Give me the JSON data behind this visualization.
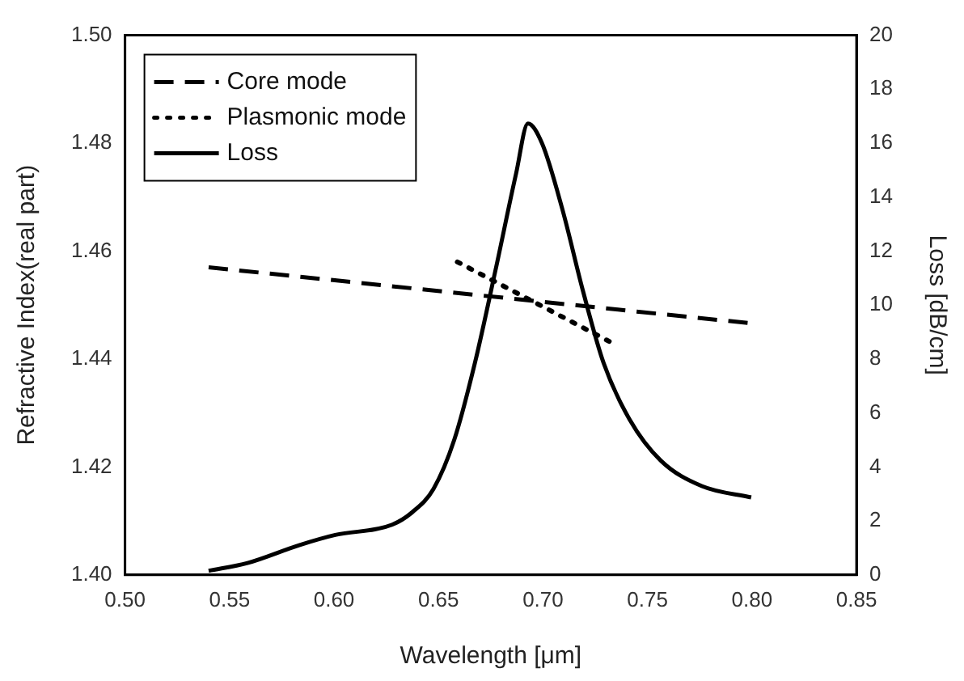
{
  "chart_data": {
    "type": "line",
    "xlabel": "Wavelength [μm]",
    "ylabel": "Refractive Index(real part)",
    "y2label": "Loss [dB/cm]",
    "xlim": [
      0.5,
      0.85
    ],
    "xticks": [
      {
        "value": 0.5,
        "label": "0.50"
      },
      {
        "value": 0.55,
        "label": "0.55"
      },
      {
        "value": 0.6,
        "label": "0.60"
      },
      {
        "value": 0.65,
        "label": "0.65"
      },
      {
        "value": 0.7,
        "label": "0.70"
      },
      {
        "value": 0.75,
        "label": "0.75"
      },
      {
        "value": 0.8,
        "label": "0.80"
      },
      {
        "value": 0.85,
        "label": "0.85"
      }
    ],
    "ylim": [
      1.4,
      1.5
    ],
    "yticks": [
      {
        "value": 1.4,
        "label": "1.40"
      },
      {
        "value": 1.42,
        "label": "1.42"
      },
      {
        "value": 1.44,
        "label": "1.44"
      },
      {
        "value": 1.46,
        "label": "1.46"
      },
      {
        "value": 1.48,
        "label": "1.48"
      },
      {
        "value": 1.5,
        "label": "1.50"
      }
    ],
    "y2lim": [
      0,
      20
    ],
    "y2ticks": [
      0,
      2,
      4,
      6,
      8,
      10,
      12,
      14,
      16,
      18,
      20
    ],
    "grid": false,
    "legend": "top left",
    "marker": "none",
    "series": [
      {
        "name": "Core mode",
        "color": "#000000",
        "line_style": "dashed",
        "x": [
          0.54,
          0.8
        ],
        "values": [
          1.457,
          1.4466
        ]
      },
      {
        "name": "Plasmonic mode",
        "color": "#000000",
        "line_style": "dotted",
        "x": [
          0.659,
          0.733
        ],
        "values": [
          1.458,
          1.443
        ]
      },
      {
        "name": "Loss",
        "color": "#000000",
        "line_style": "solid",
        "axis": "y2",
        "x": [
          0.54,
          0.5586,
          0.5833,
          0.6006,
          0.6278,
          0.6377,
          0.6476,
          0.6575,
          0.6674,
          0.6772,
          0.6871,
          0.6928,
          0.6995,
          0.7093,
          0.7192,
          0.729,
          0.7415,
          0.7563,
          0.776,
          0.7996
        ],
        "values": [
          0.15,
          0.44,
          1.1,
          1.48,
          1.86,
          2.34,
          3.19,
          5.0,
          7.85,
          11.27,
          14.87,
          16.73,
          16.0,
          13.54,
          10.5,
          7.85,
          5.75,
          4.24,
          3.29,
          2.87
        ]
      }
    ]
  }
}
